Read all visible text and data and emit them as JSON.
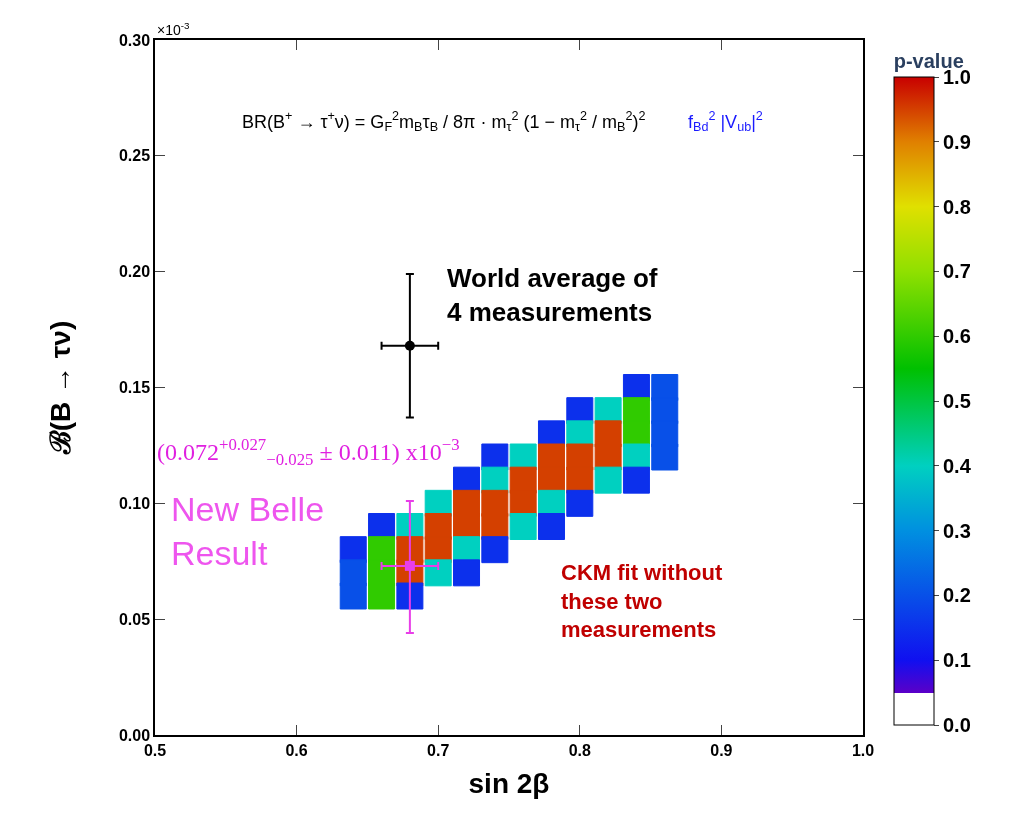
{
  "chart_data": {
    "type": "scatter",
    "xlabel": "sin 2β",
    "ylabel": "ℬ(B → τν)",
    "clabel": "p-value",
    "xlim": [
      0.5,
      1.0
    ],
    "xticks": [
      0.5,
      0.6,
      0.7,
      0.8,
      0.9,
      {
        "value": 1.0,
        "label": "1.0"
      }
    ],
    "ylim": [
      0,
      0.3
    ],
    "yticks": [
      {
        "value": 0,
        "label": "0.00"
      },
      0.05,
      {
        "value": 0.1,
        "label": "0.10"
      },
      0.15,
      {
        "value": 0.2,
        "label": "0.20"
      },
      0.25,
      {
        "value": 0.3,
        "label": "0.30"
      }
    ],
    "clim": [
      0,
      1
    ],
    "cticks": [
      {
        "value": 0,
        "label": "0.0"
      },
      0.1,
      0.2,
      0.3,
      0.4,
      0.5,
      0.6,
      0.7,
      0.8,
      0.9,
      {
        "value": 1,
        "label": "1.0"
      }
    ],
    "series": [
      {
        "marker": "square",
        "colors": [
          "#0c30ec",
          "#0850e8",
          "#0c30ec",
          "#00d0c0",
          "#30cb00",
          "#0850e8",
          "#0c30ec",
          "#00d0c0",
          "#d44000",
          "#30cb00",
          "#0850e8",
          "#0c30ec",
          "#00d0c0",
          "#d44000",
          "#d44000",
          "#d44000",
          "#00d0c0",
          "#0850e8",
          "#0c30ec",
          "#00d0c0",
          "#d44000",
          "#d44000",
          "#d44000",
          "#00d0c0",
          "#0c30ec",
          "#00d0c0",
          "#d44000",
          "#d44000",
          "#d44000",
          "#00d0c0",
          "#0c30ec",
          "#0c30ec",
          "#00d0c0",
          "#d44000",
          "#d44000",
          "#d44000",
          "#00d0c0",
          "#0c30ec",
          "#0c30ec",
          "#30cb00",
          "#d44000",
          "#d44000",
          "#00d0c0",
          "#0c30ec",
          "#0850e8",
          "#30cb00",
          "#d44000",
          "#00d0c0",
          "#0c30ec",
          "#0850e8",
          "#30cb00",
          "#0c30ec"
        ],
        "x": [
          0.84,
          0.86,
          0.8,
          0.82,
          0.84,
          0.86,
          0.78,
          0.8,
          0.82,
          0.84,
          0.86,
          0.74,
          0.76,
          0.78,
          0.8,
          0.82,
          0.84,
          0.86,
          0.72,
          0.74,
          0.76,
          0.78,
          0.8,
          0.82,
          0.84,
          0.7,
          0.72,
          0.74,
          0.76,
          0.78,
          0.8,
          0.66,
          0.68,
          0.7,
          0.72,
          0.74,
          0.76,
          0.78,
          0.64,
          0.66,
          0.68,
          0.7,
          0.72,
          0.74,
          0.64,
          0.66,
          0.68,
          0.7,
          0.72,
          0.64,
          0.66,
          0.68
        ],
        "values": [
          0.15,
          0.15,
          0.14,
          0.14,
          0.14,
          0.14,
          0.13,
          0.13,
          0.13,
          0.13,
          0.13,
          0.12,
          0.12,
          0.12,
          0.12,
          0.12,
          0.12,
          0.12,
          0.11,
          0.11,
          0.11,
          0.11,
          0.11,
          0.11,
          0.11,
          0.1,
          0.1,
          0.1,
          0.1,
          0.1,
          0.1,
          0.09,
          0.09,
          0.09,
          0.09,
          0.09,
          0.09,
          0.09,
          0.08,
          0.08,
          0.08,
          0.08,
          0.08,
          0.08,
          0.07,
          0.07,
          0.07,
          0.07,
          0.07,
          0.06,
          0.06,
          0.06
        ],
        "cvalues": [
          0.15,
          0.2,
          0.15,
          0.4,
          0.6,
          0.2,
          0.15,
          0.4,
          0.95,
          0.6,
          0.2,
          0.15,
          0.4,
          0.95,
          0.95,
          0.95,
          0.4,
          0.2,
          0.15,
          0.4,
          0.95,
          0.95,
          0.95,
          0.4,
          0.15,
          0.4,
          0.95,
          0.95,
          0.95,
          0.4,
          0.15,
          0.15,
          0.4,
          0.95,
          0.95,
          0.95,
          0.4,
          0.15,
          0.15,
          0.6,
          0.95,
          0.95,
          0.4,
          0.15,
          0.2,
          0.6,
          0.95,
          0.4,
          0.15,
          0.2,
          0.6,
          0.15
        ]
      },
      {
        "color": "#000000",
        "x": [
          0.68
        ],
        "values": [
          0.168
        ],
        "errors": [
          0.031
        ],
        "xerrors": [
          0.02
        ],
        "marker": "circle"
      },
      {
        "color": "#e83ee8",
        "x": [
          0.68
        ],
        "values": [
          0.073
        ],
        "errors": [
          [
            0.044,
            0.101
          ]
        ],
        "xerrors": [
          0.02
        ],
        "marker": "square"
      }
    ],
    "annotations": [
      "×10$^{-3}$",
      "BR(B$^{+}$ → τ$^{+}$ν) = G$_{F}$$^{2}$m$_{B}$τ$_{B}$ / 8π · m$_{τ}$$^{2}$ (1 − m$_{τ}$$^{2}$ / m$_{B}$$^{2}$)$^{2}$",
      "f$_{Bd}$$^{2}$ |V$_{ub}$|$^{2}$",
      "World average of\n4 measurements",
      "(0.072$^{+0.027}$$_{−0.025}$ ± 0.011) x10$^{−3}$",
      "New Belle\nResult",
      "CKM fit without\nthese two\nmeasurements"
    ]
  }
}
